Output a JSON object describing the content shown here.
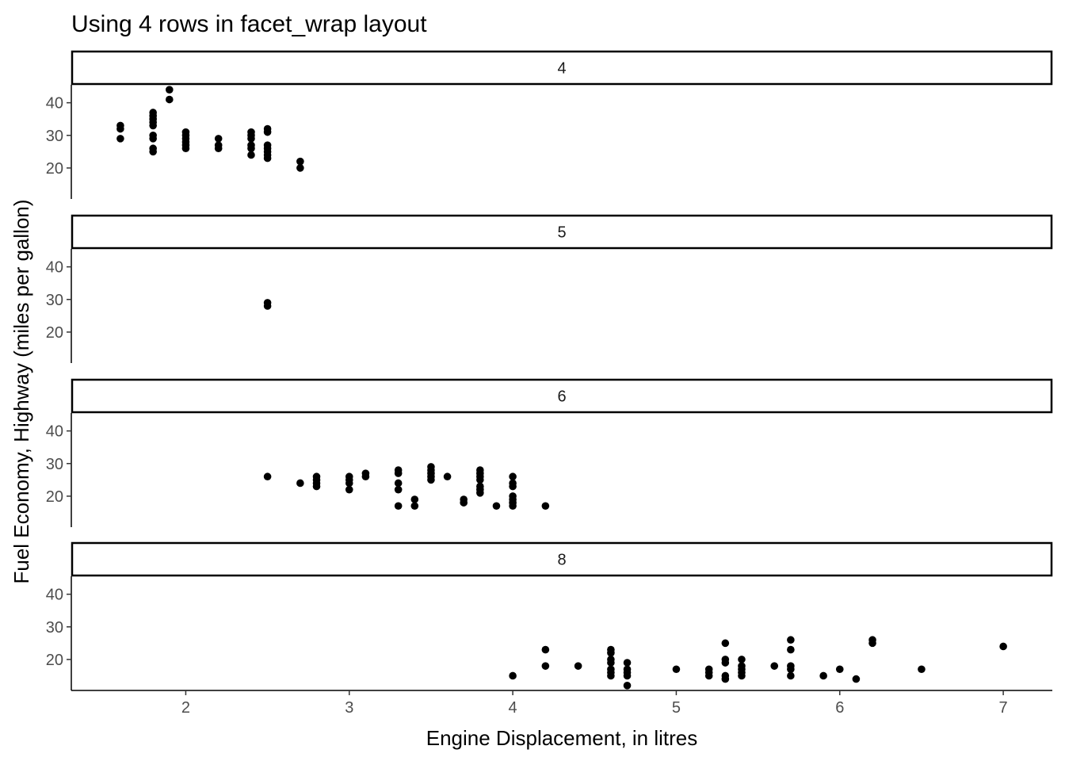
{
  "chart_data": {
    "type": "scatter",
    "title": "Using 4 rows in facet_wrap layout",
    "xlabel": "Engine Displacement, in litres",
    "ylabel": "Fuel Economy, Highway (miles per gallon)",
    "xlim": [
      1.3,
      7.3
    ],
    "ylim": [
      10.5,
      45.5
    ],
    "x_ticks": [
      2,
      3,
      4,
      5,
      6,
      7
    ],
    "y_ticks": [
      20,
      30,
      40
    ],
    "grid": false,
    "point_color": "#000000",
    "panels": [
      {
        "label": "4",
        "points": [
          [
            1.6,
            33
          ],
          [
            1.6,
            32
          ],
          [
            1.6,
            29
          ],
          [
            1.8,
            37
          ],
          [
            1.8,
            36
          ],
          [
            1.8,
            35
          ],
          [
            1.8,
            34
          ],
          [
            1.8,
            33
          ],
          [
            1.8,
            30
          ],
          [
            1.8,
            29
          ],
          [
            1.8,
            26
          ],
          [
            1.8,
            25
          ],
          [
            1.9,
            44
          ],
          [
            1.9,
            41
          ],
          [
            2.0,
            31
          ],
          [
            2.0,
            30
          ],
          [
            2.0,
            29
          ],
          [
            2.0,
            28
          ],
          [
            2.0,
            27
          ],
          [
            2.0,
            26
          ],
          [
            2.2,
            29
          ],
          [
            2.2,
            27
          ],
          [
            2.2,
            26
          ],
          [
            2.4,
            31
          ],
          [
            2.4,
            30
          ],
          [
            2.4,
            29
          ],
          [
            2.4,
            27
          ],
          [
            2.4,
            26
          ],
          [
            2.4,
            24
          ],
          [
            2.5,
            32
          ],
          [
            2.5,
            31
          ],
          [
            2.5,
            27
          ],
          [
            2.5,
            26
          ],
          [
            2.5,
            25
          ],
          [
            2.5,
            24
          ],
          [
            2.5,
            23
          ],
          [
            2.7,
            22
          ],
          [
            2.7,
            20
          ]
        ]
      },
      {
        "label": "5",
        "points": [
          [
            2.5,
            29
          ],
          [
            2.5,
            28
          ]
        ]
      },
      {
        "label": "6",
        "points": [
          [
            2.5,
            26
          ],
          [
            2.7,
            24
          ],
          [
            2.8,
            26
          ],
          [
            2.8,
            25
          ],
          [
            2.8,
            24
          ],
          [
            2.8,
            23
          ],
          [
            3.0,
            26
          ],
          [
            3.0,
            25
          ],
          [
            3.0,
            24
          ],
          [
            3.0,
            22
          ],
          [
            3.1,
            27
          ],
          [
            3.1,
            26
          ],
          [
            3.3,
            28
          ],
          [
            3.3,
            27
          ],
          [
            3.3,
            24
          ],
          [
            3.3,
            22
          ],
          [
            3.3,
            17
          ],
          [
            3.4,
            19
          ],
          [
            3.4,
            17
          ],
          [
            3.5,
            29
          ],
          [
            3.5,
            28
          ],
          [
            3.5,
            27
          ],
          [
            3.5,
            26
          ],
          [
            3.5,
            25
          ],
          [
            3.6,
            26
          ],
          [
            3.7,
            19
          ],
          [
            3.7,
            18
          ],
          [
            3.8,
            28
          ],
          [
            3.8,
            27
          ],
          [
            3.8,
            26
          ],
          [
            3.8,
            25
          ],
          [
            3.8,
            23
          ],
          [
            3.8,
            22
          ],
          [
            3.8,
            21
          ],
          [
            3.9,
            17
          ],
          [
            4.0,
            26
          ],
          [
            4.0,
            24
          ],
          [
            4.0,
            23
          ],
          [
            4.0,
            20
          ],
          [
            4.0,
            19
          ],
          [
            4.0,
            18
          ],
          [
            4.0,
            17
          ],
          [
            4.2,
            17
          ]
        ]
      },
      {
        "label": "8",
        "points": [
          [
            4.0,
            15
          ],
          [
            4.2,
            23
          ],
          [
            4.2,
            18
          ],
          [
            4.4,
            18
          ],
          [
            4.6,
            23
          ],
          [
            4.6,
            22
          ],
          [
            4.6,
            20
          ],
          [
            4.6,
            19
          ],
          [
            4.6,
            17
          ],
          [
            4.6,
            16
          ],
          [
            4.6,
            15
          ],
          [
            4.7,
            19
          ],
          [
            4.7,
            17
          ],
          [
            4.7,
            16
          ],
          [
            4.7,
            15
          ],
          [
            4.7,
            12
          ],
          [
            5.0,
            17
          ],
          [
            5.2,
            17
          ],
          [
            5.2,
            16
          ],
          [
            5.2,
            15
          ],
          [
            5.3,
            25
          ],
          [
            5.3,
            20
          ],
          [
            5.3,
            19
          ],
          [
            5.3,
            15
          ],
          [
            5.3,
            14
          ],
          [
            5.4,
            20
          ],
          [
            5.4,
            18
          ],
          [
            5.4,
            17
          ],
          [
            5.4,
            16
          ],
          [
            5.4,
            15
          ],
          [
            5.6,
            18
          ],
          [
            5.7,
            26
          ],
          [
            5.7,
            23
          ],
          [
            5.7,
            18
          ],
          [
            5.7,
            17
          ],
          [
            5.7,
            15
          ],
          [
            5.9,
            15
          ],
          [
            6.0,
            17
          ],
          [
            6.1,
            14
          ],
          [
            6.2,
            26
          ],
          [
            6.2,
            25
          ],
          [
            6.5,
            17
          ],
          [
            7.0,
            24
          ]
        ]
      }
    ]
  }
}
